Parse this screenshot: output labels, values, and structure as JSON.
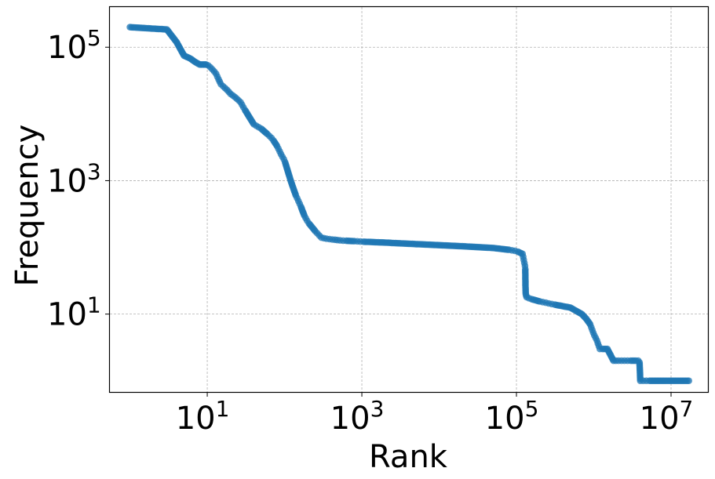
{
  "chart_data": {
    "type": "line",
    "title": "",
    "xlabel": "Rank",
    "ylabel": "Frequency",
    "x_scale": "log",
    "y_scale": "log",
    "xlim": [
      0.55,
      30000000
    ],
    "ylim": [
      0.68,
      400000
    ],
    "grid": true,
    "marker": "circle",
    "color": "#1f77b4",
    "x_ticks": [
      {
        "value": 10,
        "base": "10",
        "exp": "1"
      },
      {
        "value": 1000,
        "base": "10",
        "exp": "3"
      },
      {
        "value": 100000,
        "base": "10",
        "exp": "5"
      },
      {
        "value": 10000000,
        "base": "10",
        "exp": "7"
      }
    ],
    "y_ticks": [
      {
        "value": 10,
        "base": "10",
        "exp": "1"
      },
      {
        "value": 1000,
        "base": "10",
        "exp": "3"
      },
      {
        "value": 100000,
        "base": "10",
        "exp": "5"
      }
    ],
    "series": [
      {
        "x": [
          1,
          2,
          3,
          4,
          5,
          6,
          7,
          8,
          9,
          10,
          11,
          12,
          13,
          14,
          15,
          16,
          18,
          20,
          22,
          24,
          27,
          30,
          35,
          40,
          50,
          60,
          70,
          80,
          90,
          100,
          120,
          140,
          160,
          180,
          200,
          250,
          300,
          350,
          400,
          450,
          500,
          600,
          800,
          1000,
          2000,
          5000,
          10000,
          20000,
          50000,
          80000,
          100000,
          120000,
          130000,
          131000,
          132000,
          135000,
          150000,
          200000,
          300000,
          500000,
          700000,
          800000,
          900000,
          1000000,
          1100000,
          1200000,
          1300000,
          1500000,
          1800000,
          2000000,
          2500000,
          3000000,
          3500000,
          3900000,
          4000000,
          5000000,
          8000000,
          12000000,
          17000000
        ],
        "y": [
          200000,
          190000,
          185000,
          120000,
          75000,
          68000,
          60000,
          55000,
          55000,
          55000,
          50000,
          45000,
          40000,
          33000,
          28000,
          26000,
          23000,
          20000,
          18500,
          17000,
          15000,
          12000,
          9000,
          7000,
          6000,
          5000,
          4200,
          3300,
          2500,
          2000,
          1000,
          600,
          430,
          300,
          240,
          175,
          140,
          135,
          132,
          130,
          128,
          126,
          124,
          122,
          118,
          112,
          108,
          104,
          98,
          92,
          88,
          80,
          50,
          25,
          20,
          18,
          17,
          15.5,
          14,
          12.5,
          10,
          8.5,
          7,
          5,
          4,
          3,
          3,
          3,
          2,
          2,
          2,
          2,
          2,
          2,
          1,
          1,
          1,
          1,
          1
        ]
      }
    ]
  }
}
